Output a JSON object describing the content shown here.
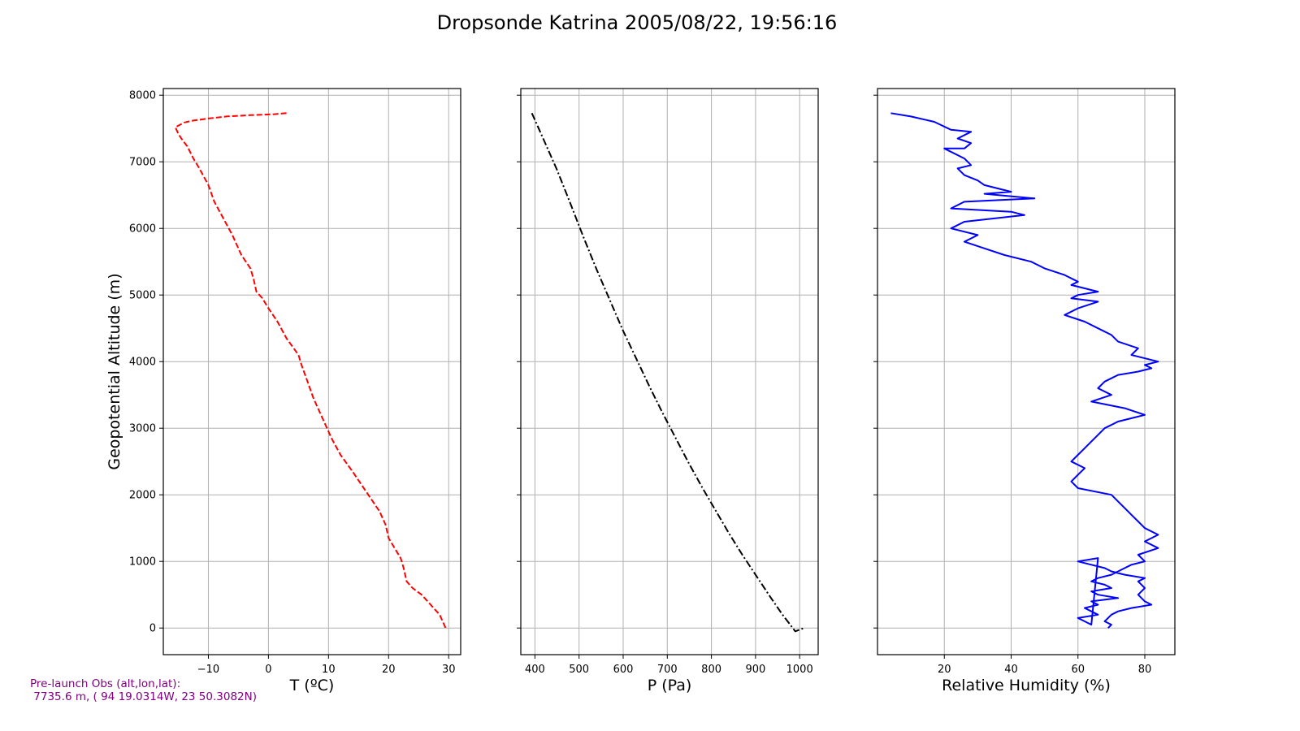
{
  "figure": {
    "title": "Dropsonde Katrina 2005/08/22, 19:56:16",
    "note_line1": "Pre-launch Obs (alt,lon,lat):",
    "note_line2": " 7735.6 m, ( 94 19.0314W, 23 50.3082N)"
  },
  "chart_data": [
    {
      "type": "line",
      "xlabel": "T (ºC)",
      "ylabel": "Geopotential Altitude (m)",
      "xlim": [
        -17.5,
        32
      ],
      "ylim": [
        -400,
        8100
      ],
      "xticks": [
        -10,
        0,
        10,
        20,
        30
      ],
      "yticks": [
        0,
        1000,
        2000,
        3000,
        4000,
        5000,
        6000,
        7000,
        8000
      ],
      "grid": true,
      "series": [
        {
          "color": "#ff0000",
          "linestyle": "dashed",
          "x": [
            3,
            1,
            -3,
            -7,
            -10,
            -12.5,
            -14,
            -15.5,
            -15,
            -14.5,
            -13.5,
            -12.5,
            -11.5,
            -10,
            -9,
            -7.5,
            -6,
            -4.5,
            -3,
            -2.5,
            -2,
            -1,
            0,
            1.5,
            3,
            5,
            5.5,
            6.5,
            7.5,
            8.5,
            9.5,
            10.5,
            12,
            14,
            15.5,
            17,
            18.5,
            19.5,
            20,
            21,
            22,
            22.5,
            23,
            24,
            25.5,
            27,
            28.5,
            29.5
          ],
          "y": [
            7730,
            7715,
            7700,
            7680,
            7650,
            7620,
            7590,
            7520,
            7420,
            7350,
            7230,
            7050,
            6900,
            6650,
            6400,
            6150,
            5900,
            5600,
            5400,
            5250,
            5050,
            4950,
            4800,
            4600,
            4350,
            4100,
            3950,
            3700,
            3450,
            3250,
            3050,
            2850,
            2600,
            2350,
            2150,
            1950,
            1750,
            1550,
            1350,
            1200,
            1050,
            900,
            700,
            600,
            500,
            350,
            200,
            0
          ]
        }
      ]
    },
    {
      "type": "line",
      "xlabel": "P (Pa)",
      "xlim": [
        368,
        1042
      ],
      "ylim": [
        -400,
        8100
      ],
      "xticks": [
        400,
        500,
        600,
        700,
        800,
        900,
        1000
      ],
      "yticks": [
        0,
        1000,
        2000,
        3000,
        4000,
        5000,
        6000,
        7000,
        8000
      ],
      "grid": true,
      "series": [
        {
          "color": "#000000",
          "linestyle": "dashdot",
          "x": [
            393,
            420,
            450,
            480,
            510,
            540,
            570,
            600,
            630,
            660,
            690,
            720,
            750,
            780,
            810,
            840,
            870,
            900,
            930,
            960,
            990,
            1010
          ],
          "y": [
            7730,
            7330,
            6880,
            6380,
            5870,
            5380,
            4920,
            4460,
            4040,
            3620,
            3220,
            2840,
            2460,
            2100,
            1760,
            1420,
            1100,
            800,
            500,
            210,
            -50,
            0
          ]
        }
      ]
    },
    {
      "type": "line",
      "xlabel": "Relative Humidity (%)",
      "xlim": [
        0,
        89
      ],
      "ylim": [
        -400,
        8100
      ],
      "xticks": [
        20,
        40,
        60,
        80
      ],
      "yticks": [
        0,
        1000,
        2000,
        3000,
        4000,
        5000,
        6000,
        7000,
        8000
      ],
      "grid": true,
      "series": [
        {
          "color": "#0000ff",
          "linestyle": "solid",
          "x": [
            4,
            10,
            17,
            22,
            28,
            24,
            28,
            26,
            20,
            26,
            28,
            24,
            26,
            30,
            32,
            36,
            40,
            32,
            47,
            26,
            22,
            40,
            44,
            26,
            22,
            30,
            26,
            32,
            38,
            46,
            50,
            56,
            60,
            58,
            62,
            66,
            60,
            58,
            66,
            60,
            56,
            62,
            66,
            70,
            72,
            78,
            76,
            84,
            80,
            82,
            78,
            72,
            70,
            68,
            66,
            70,
            64,
            74,
            80,
            72,
            68,
            66,
            64,
            62,
            60,
            58,
            62,
            60,
            58,
            60,
            70,
            72,
            74,
            76,
            78,
            80,
            84,
            80,
            84,
            78,
            80,
            76,
            74,
            72,
            70,
            66,
            64,
            68,
            70,
            64,
            66,
            72,
            64,
            66,
            62,
            64,
            66,
            60,
            62,
            64,
            66,
            60,
            64,
            68,
            70,
            74,
            80,
            78,
            80,
            78,
            80,
            82,
            76,
            72,
            70,
            68,
            70,
            69
          ],
          "y": [
            7730,
            7680,
            7600,
            7480,
            7450,
            7350,
            7280,
            7200,
            7200,
            7050,
            6950,
            6900,
            6800,
            6720,
            6650,
            6600,
            6550,
            6520,
            6450,
            6400,
            6300,
            6250,
            6200,
            6100,
            6000,
            5900,
            5800,
            5700,
            5600,
            5500,
            5400,
            5300,
            5200,
            5150,
            5100,
            5050,
            5000,
            4950,
            4900,
            4800,
            4700,
            4600,
            4500,
            4400,
            4300,
            4200,
            4100,
            4000,
            3950,
            3900,
            3850,
            3800,
            3750,
            3700,
            3600,
            3500,
            3400,
            3300,
            3200,
            3100,
            3000,
            2900,
            2800,
            2700,
            2600,
            2500,
            2400,
            2300,
            2200,
            2100,
            2000,
            1900,
            1800,
            1700,
            1600,
            1500,
            1400,
            1300,
            1200,
            1100,
            1000,
            950,
            900,
            850,
            800,
            750,
            700,
            650,
            600,
            550,
            500,
            450,
            400,
            350,
            300,
            250,
            200,
            150,
            100,
            50,
            1050,
            1000,
            950,
            900,
            850,
            800,
            750,
            700,
            600,
            500,
            400,
            350,
            300,
            250,
            200,
            100,
            50,
            0
          ]
        }
      ]
    }
  ]
}
